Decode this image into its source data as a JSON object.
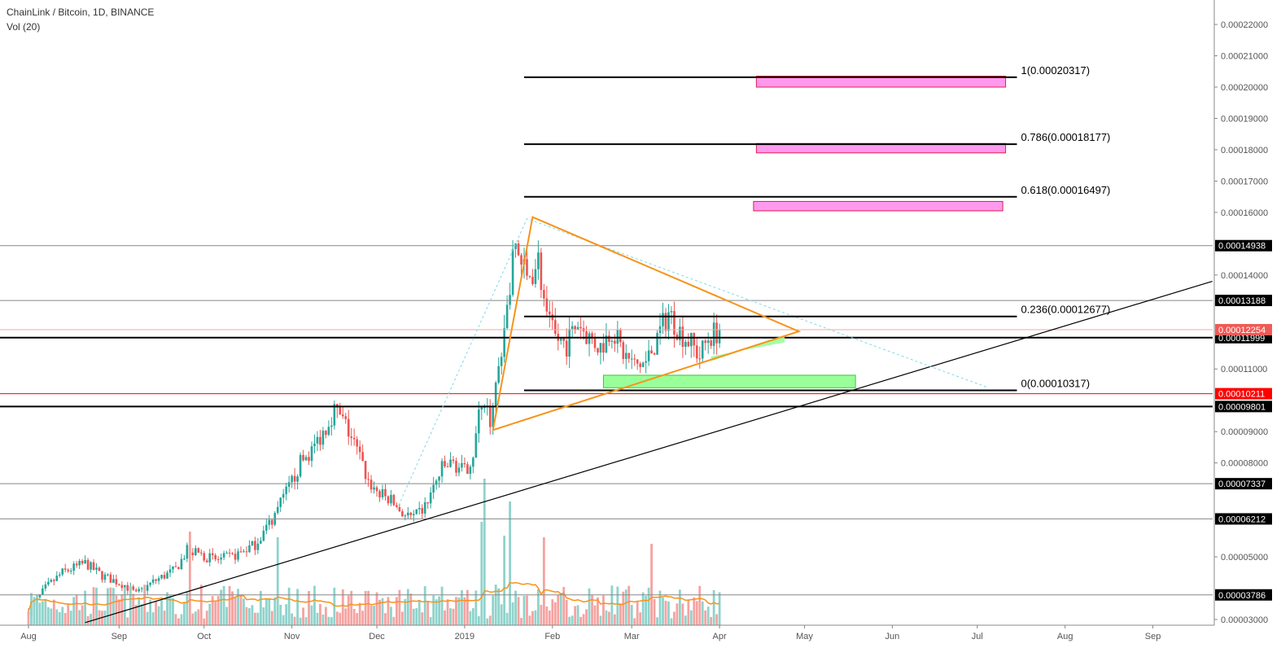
{
  "header": {
    "symbol": "ChainLink / Bitcoin, 1D, BINANCE",
    "indicator": "Vol (20)"
  },
  "colors": {
    "up": "#26a69a",
    "down": "#ef5350",
    "vol_up": "#8fd3cc",
    "vol_down": "#f5a3a1",
    "triangle": "#f7931a",
    "fib_line": "#000000",
    "target_zone": "#ff99ee",
    "support_zone": "#99ff99",
    "red_level": "#ff0000",
    "trendline": "#000000"
  },
  "chart_data": {
    "type": "candlestick",
    "y_axis": {
      "ylim": [
        2.9e-05,
        0.0002295
      ],
      "ticks": [
        "0.00022000",
        "0.00021000",
        "0.00020000",
        "0.00019000",
        "0.00018000",
        "0.00017000",
        "0.00016000",
        "0.00014000",
        "0.00011000",
        "0.00009000",
        "0.00008000",
        "0.00005000",
        "0.00003000"
      ]
    },
    "x_axis": {
      "labels": [
        "Aug",
        "Sep",
        "Oct",
        "Nov",
        "Dec",
        "2019",
        "Feb",
        "Mar",
        "Apr",
        "May",
        "Jun",
        "Jul",
        "Aug",
        "Sep"
      ],
      "label_days": [
        0,
        32,
        62,
        93,
        123,
        154,
        185,
        213,
        244,
        274,
        305,
        335,
        366,
        397
      ]
    },
    "last_day": 244,
    "price_path": [
      [
        0,
        3.25e-05
      ],
      [
        6,
        4e-05
      ],
      [
        12,
        4.5e-05
      ],
      [
        20,
        4.8e-05
      ],
      [
        26,
        4.4e-05
      ],
      [
        34,
        4.1e-05
      ],
      [
        38,
        3.8e-05
      ],
      [
        44,
        4.2e-05
      ],
      [
        52,
        4.6e-05
      ],
      [
        56,
        5.2e-05
      ],
      [
        60,
        5.1e-05
      ],
      [
        66,
        4.9e-05
      ],
      [
        72,
        5e-05
      ],
      [
        80,
        5.4e-05
      ],
      [
        86,
        6.2e-05
      ],
      [
        92,
        7.2e-05
      ],
      [
        96,
        8e-05
      ],
      [
        100,
        8.4e-05
      ],
      [
        104,
        9e-05
      ],
      [
        108,
        9.7e-05
      ],
      [
        112,
        9.2e-05
      ],
      [
        116,
        8.4e-05
      ],
      [
        120,
        7.4e-05
      ],
      [
        124,
        7e-05
      ],
      [
        128,
        6.8e-05
      ],
      [
        132,
        6.4e-05
      ],
      [
        136,
        6.2e-05
      ],
      [
        140,
        6.6e-05
      ],
      [
        146,
        7.8e-05
      ],
      [
        150,
        8e-05
      ],
      [
        154,
        7.7e-05
      ],
      [
        157,
        8.3e-05
      ],
      [
        160,
        0.0001
      ],
      [
        163,
        9.4e-05
      ],
      [
        166,
        0.00011
      ],
      [
        169,
        0.00013
      ],
      [
        172,
        0.00015
      ],
      [
        176,
        0.000138
      ],
      [
        180,
        0.000145
      ],
      [
        183,
        0.000125
      ],
      [
        186,
        0.00012
      ],
      [
        190,
        0.000118
      ],
      [
        194,
        0.000125
      ],
      [
        198,
        0.00012
      ],
      [
        202,
        0.000117
      ],
      [
        206,
        0.000123
      ],
      [
        210,
        0.000115
      ],
      [
        214,
        0.000111
      ],
      [
        218,
        0.000112
      ],
      [
        222,
        0.00012
      ],
      [
        226,
        0.000128
      ],
      [
        230,
        0.000122
      ],
      [
        234,
        0.000118
      ],
      [
        237,
        0.000114
      ],
      [
        240,
        0.00012
      ],
      [
        244,
        0.0001225
      ]
    ],
    "volume_spikes": [
      {
        "day": 57,
        "h": 115
      },
      {
        "day": 88,
        "h": 108
      },
      {
        "day": 160,
        "h": 127
      },
      {
        "day": 161,
        "h": 180
      },
      {
        "day": 168,
        "h": 110
      },
      {
        "day": 170,
        "h": 152
      },
      {
        "day": 182,
        "h": 108
      },
      {
        "day": 220,
        "h": 100
      }
    ],
    "last_price": 0.00012254,
    "horizontal_levels": [
      {
        "price": 0.00014938,
        "label": "0.00014938",
        "style": "thin"
      },
      {
        "price": 0.00013188,
        "label": "0.00013188",
        "style": "thin"
      },
      {
        "price": 0.00011999,
        "label": "0.00011999",
        "style": "thick"
      },
      {
        "price": 0.00010211,
        "label": "0.00010211",
        "style": "red"
      },
      {
        "price": 9.801e-05,
        "label": "0.00009801",
        "style": "thick"
      },
      {
        "price": 7.337e-05,
        "label": "0.00007337",
        "style": "thin"
      },
      {
        "price": 6.212e-05,
        "label": "0.00006212",
        "style": "thin"
      },
      {
        "price": 3.786e-05,
        "label": "0.00003786",
        "style": "thin"
      }
    ],
    "fib_levels": [
      {
        "price": 0.00020317,
        "label": "1(0.00020317)"
      },
      {
        "price": 0.00018177,
        "label": "0.786(0.00018177)"
      },
      {
        "price": 0.00016497,
        "label": "0.618(0.00016497)"
      },
      {
        "price": 0.00012677,
        "label": "0.236(0.00012677)"
      },
      {
        "price": 0.00010317,
        "label": "0(0.00010317)"
      }
    ],
    "fib_span_days": [
      175,
      349
    ],
    "target_zones": [
      {
        "d1": 257,
        "d2": 345,
        "p1": 0.0002035,
        "p2": 0.0002
      },
      {
        "d1": 257,
        "d2": 345,
        "p1": 0.000182,
        "p2": 0.000179
      },
      {
        "d1": 256,
        "d2": 344,
        "p1": 0.0001635,
        "p2": 0.0001605
      }
    ],
    "support_zones": [
      {
        "d1": 203,
        "d2": 292,
        "p1": 0.000108,
        "p2": 0.000104
      }
    ],
    "support_wedge": {
      "d1": 241,
      "d2": 267,
      "p_top1": 0.0001125,
      "p_top2": 0.0001205,
      "p_bot1": 0.000114,
      "p_bot2": 0.0001185
    },
    "triangle": [
      [
        164,
        9.05e-05
      ],
      [
        178,
        0.0001585
      ],
      [
        272,
        0.000122
      ],
      [
        164,
        9.05e-05
      ]
    ],
    "dotted_path": [
      [
        130,
        6.5e-05
      ],
      [
        176,
        0.000158
      ],
      [
        339,
        0.000104
      ]
    ],
    "trendline": [
      [
        20,
        2.9e-05
      ],
      [
        418,
        0.000138
      ]
    ]
  }
}
